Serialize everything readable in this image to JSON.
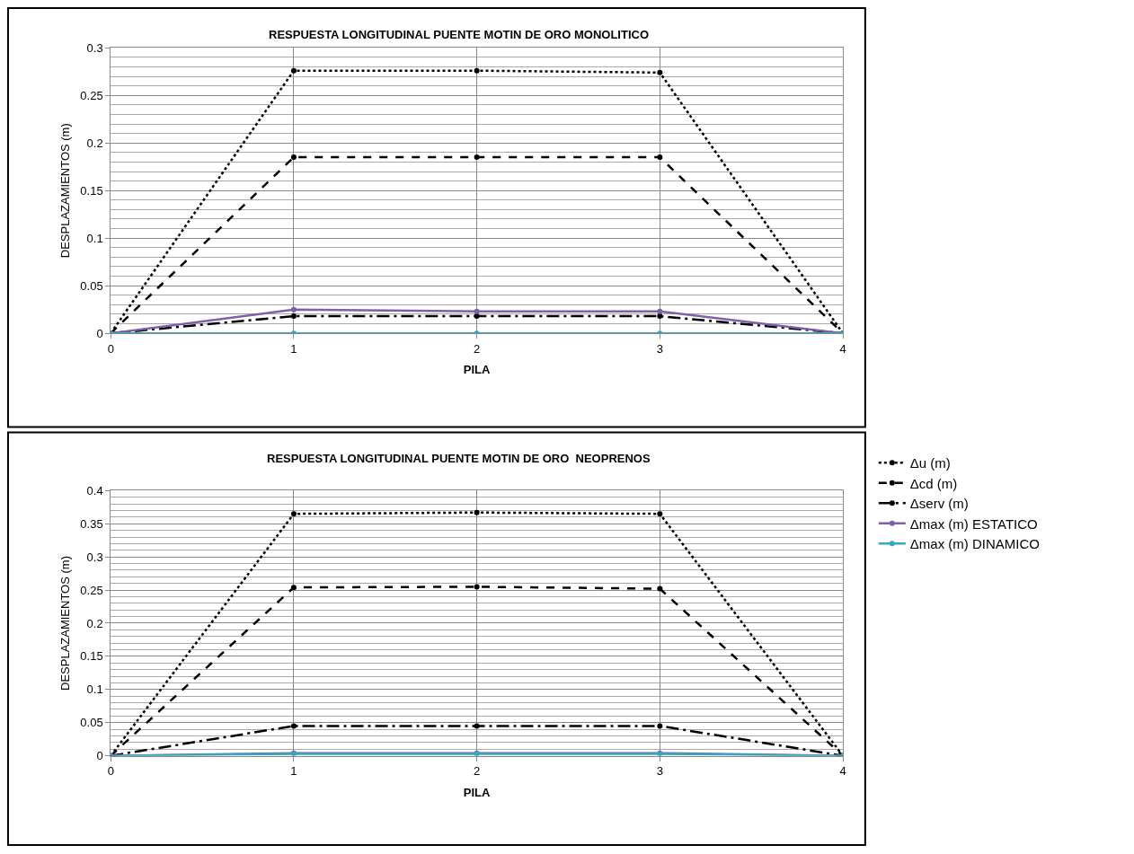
{
  "chart_data": [
    {
      "type": "line",
      "title": "RESPUESTA LONGITUDINAL PUENTE MOTIN DE ORO MONOLITICO",
      "xlabel": "PILA",
      "ylabel": "DESPLAZAMIENTOS (m)",
      "x": [
        0,
        1,
        2,
        3,
        4
      ],
      "xlim": [
        0,
        4
      ],
      "xticks": [
        0,
        1,
        2,
        3,
        4
      ],
      "ylim": [
        0,
        0.3
      ],
      "yticks": [
        0,
        0.05,
        0.1,
        0.15,
        0.2,
        0.25,
        0.3
      ],
      "grid": true,
      "marker": "circle",
      "series": [
        {
          "color": "#000000",
          "line_style": "dotted",
          "values": [
            0,
            0.276,
            0.276,
            0.274,
            0
          ]
        },
        {
          "color": "#000000",
          "line_style": "dashed",
          "values": [
            0,
            0.185,
            0.185,
            0.185,
            0
          ]
        },
        {
          "color": "#000000",
          "line_style": "dashdot",
          "values": [
            0,
            0.018,
            0.018,
            0.018,
            0
          ]
        },
        {
          "color": "#7f5fa8",
          "line_style": "solid",
          "values": [
            0,
            0.025,
            0.023,
            0.023,
            0
          ]
        },
        {
          "color": "#31a9c0",
          "line_style": "solid",
          "values": [
            0,
            0,
            0,
            0,
            0
          ]
        }
      ]
    },
    {
      "type": "line",
      "title": "RESPUESTA LONGITUDINAL PUENTE MOTIN DE ORO  NEOPRENOS",
      "xlabel": "PILA",
      "ylabel": "DESPLAZAMIENTOS (m)",
      "x": [
        0,
        1,
        2,
        3,
        4
      ],
      "xlim": [
        0,
        4
      ],
      "xticks": [
        0,
        1,
        2,
        3,
        4
      ],
      "ylim": [
        0,
        0.4
      ],
      "yticks": [
        0,
        0.05,
        0.1,
        0.15,
        0.2,
        0.25,
        0.3,
        0.35,
        0.4
      ],
      "grid": true,
      "legend": "right",
      "marker": "circle",
      "series": [
        {
          "name": "Δu (m)",
          "color": "#000000",
          "line_style": "dotted",
          "values": [
            0,
            0.365,
            0.367,
            0.365,
            0
          ]
        },
        {
          "name": "Δcd (m)",
          "color": "#000000",
          "line_style": "dashed",
          "values": [
            0,
            0.254,
            0.255,
            0.252,
            0
          ]
        },
        {
          "name": "Δserv (m)",
          "color": "#000000",
          "line_style": "dashdot",
          "values": [
            0,
            0.045,
            0.045,
            0.045,
            0
          ]
        },
        {
          "name": "Δmax (m) ESTATICO",
          "color": "#7f5fa8",
          "line_style": "solid",
          "values": [
            0,
            0.004,
            0.004,
            0.004,
            0
          ]
        },
        {
          "name": "Δmax (m) DINAMICO",
          "color": "#31a9c0",
          "line_style": "solid",
          "values": [
            0,
            0.003,
            0.003,
            0.003,
            0
          ]
        }
      ]
    }
  ]
}
